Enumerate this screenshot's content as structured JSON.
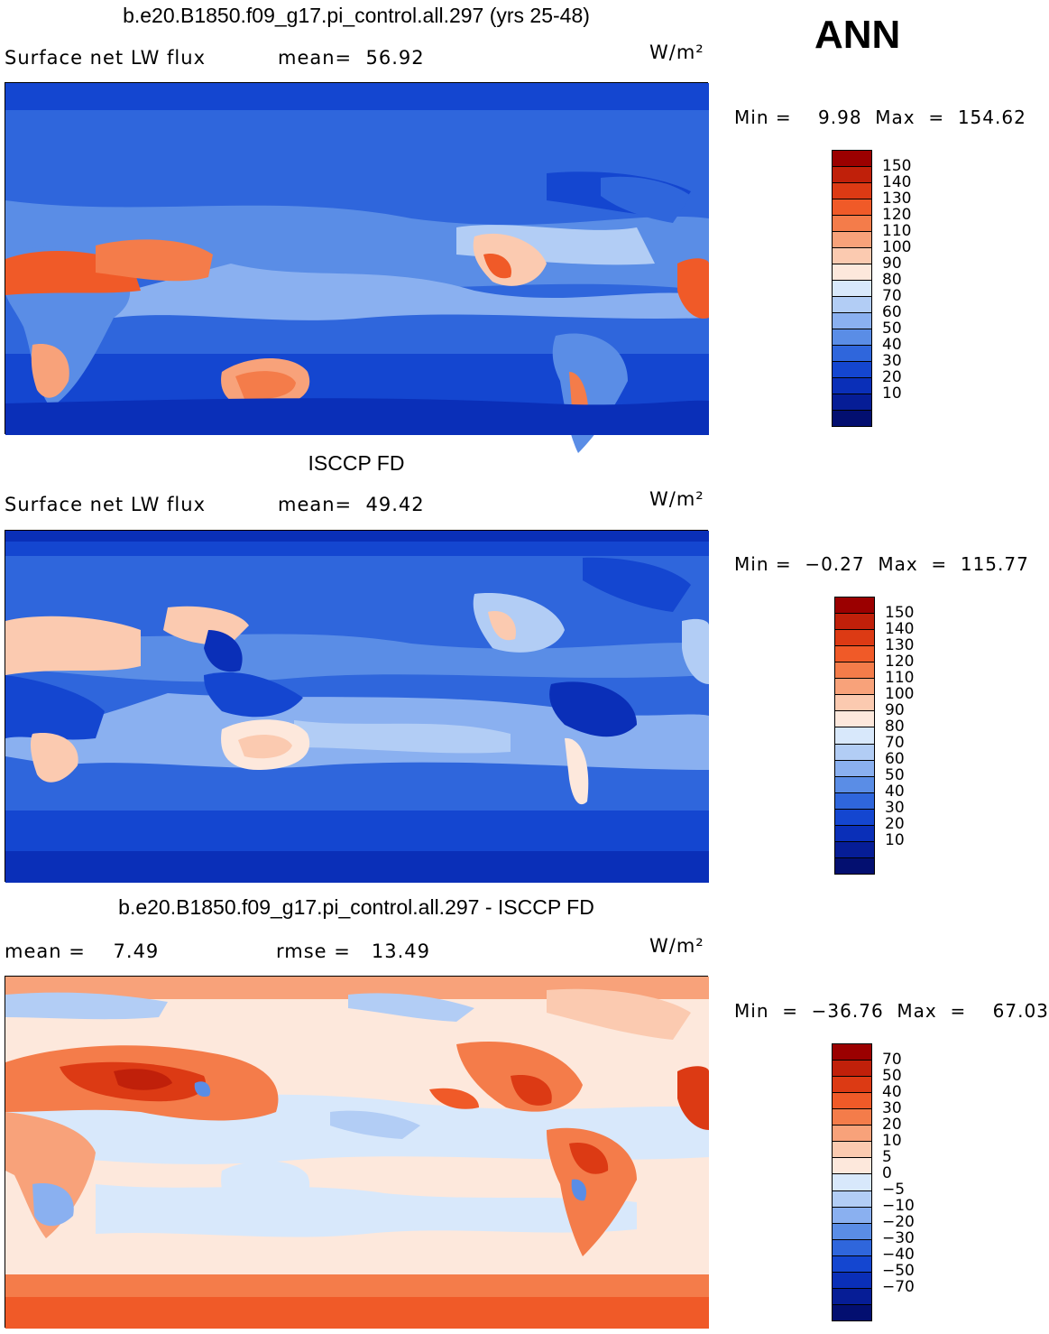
{
  "season": "ANN",
  "panels": [
    {
      "title": "b.e20.B1850.f09_g17.pi_control.all.297 (yrs 25-48)",
      "left_label": "Surface net LW flux",
      "center_label": "mean=  56.92",
      "units": "W/m²",
      "minmax": "Min =    9.98  Max  =  154.62",
      "colorbar": {
        "colors": [
          "#9b0000",
          "#c0200a",
          "#dc3a14",
          "#f05a28",
          "#f47c4a",
          "#f8a27a",
          "#fbcab0",
          "#fde8dc",
          "#d8e8fb",
          "#b2cdf5",
          "#8ab0f0",
          "#5a8de6",
          "#2f66dc",
          "#1446d0",
          "#0a2fb8",
          "#061d96",
          "#030f70"
        ],
        "labels": [
          "150",
          "140",
          "130",
          "120",
          "110",
          "100",
          "90",
          "80",
          "70",
          "60",
          "50",
          "40",
          "30",
          "20",
          "10"
        ]
      }
    },
    {
      "title": "ISCCP FD",
      "left_label": "Surface net LW flux",
      "center_label": "mean=  49.42",
      "units": "W/m²",
      "minmax": "Min =  −0.27  Max  =  115.77",
      "colorbar": {
        "colors": [
          "#9b0000",
          "#c0200a",
          "#dc3a14",
          "#f05a28",
          "#f47c4a",
          "#f8a27a",
          "#fbcab0",
          "#fde8dc",
          "#d8e8fb",
          "#b2cdf5",
          "#8ab0f0",
          "#5a8de6",
          "#2f66dc",
          "#1446d0",
          "#0a2fb8",
          "#061d96",
          "#030f70"
        ],
        "labels": [
          "150",
          "140",
          "130",
          "120",
          "110",
          "100",
          "90",
          "80",
          "70",
          "60",
          "50",
          "40",
          "30",
          "20",
          "10"
        ]
      }
    },
    {
      "title": "b.e20.B1850.f09_g17.pi_control.all.297 - ISCCP FD",
      "left_label": "mean =    7.49",
      "center_label": "rmse =   13.49",
      "units": "W/m²",
      "minmax": "Min  =  −36.76  Max  =    67.03",
      "colorbar": {
        "colors": [
          "#9b0000",
          "#c0200a",
          "#dc3a14",
          "#f05a28",
          "#f47c4a",
          "#f8a27a",
          "#fbcab0",
          "#fde8dc",
          "#d8e8fb",
          "#b2cdf5",
          "#8ab0f0",
          "#5a8de6",
          "#2f66dc",
          "#1446d0",
          "#0a2fb8",
          "#061d96",
          "#030f70"
        ],
        "labels": [
          "70",
          "50",
          "40",
          "30",
          "20",
          "10",
          "5",
          "0",
          "−5",
          "−10",
          "−20",
          "−30",
          "−40",
          "−50",
          "−70"
        ]
      }
    }
  ],
  "chart_data": [
    {
      "type": "heatmap",
      "title": "b.e20.B1850.f09_g17.pi_control.all.297 (yrs 25-48)",
      "variable": "Surface net LW flux",
      "units": "W/m²",
      "mean": 56.92,
      "min": 9.98,
      "max": 154.62,
      "contour_levels": [
        10,
        20,
        30,
        40,
        50,
        60,
        70,
        80,
        90,
        100,
        110,
        120,
        130,
        140,
        150
      ]
    },
    {
      "type": "heatmap",
      "title": "ISCCP FD",
      "variable": "Surface net LW flux",
      "units": "W/m²",
      "mean": 49.42,
      "min": -0.27,
      "max": 115.77,
      "contour_levels": [
        10,
        20,
        30,
        40,
        50,
        60,
        70,
        80,
        90,
        100,
        110,
        120,
        130,
        140,
        150
      ]
    },
    {
      "type": "heatmap",
      "title": "b.e20.B1850.f09_g17.pi_control.all.297 - ISCCP FD",
      "units": "W/m²",
      "mean": 7.49,
      "rmse": 13.49,
      "min": -36.76,
      "max": 67.03,
      "contour_levels": [
        -70,
        -50,
        -40,
        -30,
        -20,
        -10,
        -5,
        0,
        5,
        10,
        20,
        30,
        40,
        50,
        70
      ]
    }
  ]
}
